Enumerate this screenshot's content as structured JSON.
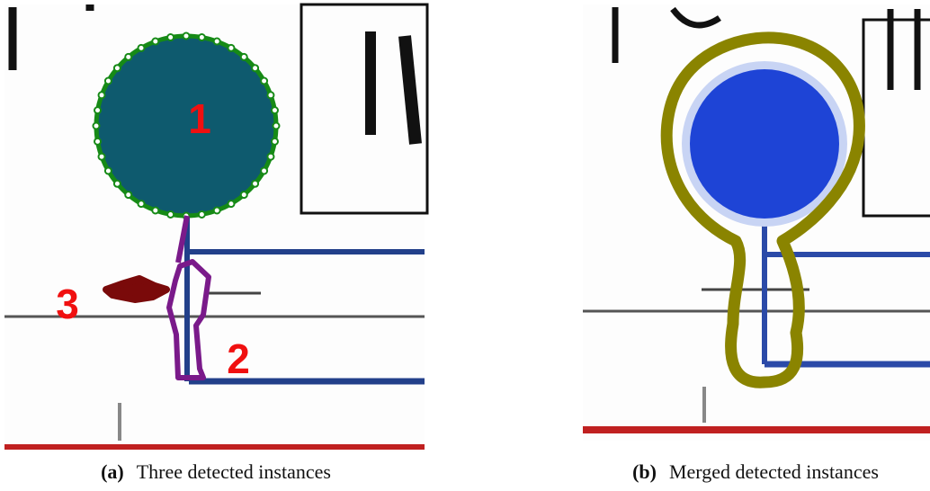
{
  "panels": [
    {
      "label": "(a)",
      "caption": "Three detected instances",
      "instances": [
        "1",
        "2",
        "3"
      ]
    },
    {
      "label": "(b)",
      "caption": "Merged detected instances"
    }
  ]
}
